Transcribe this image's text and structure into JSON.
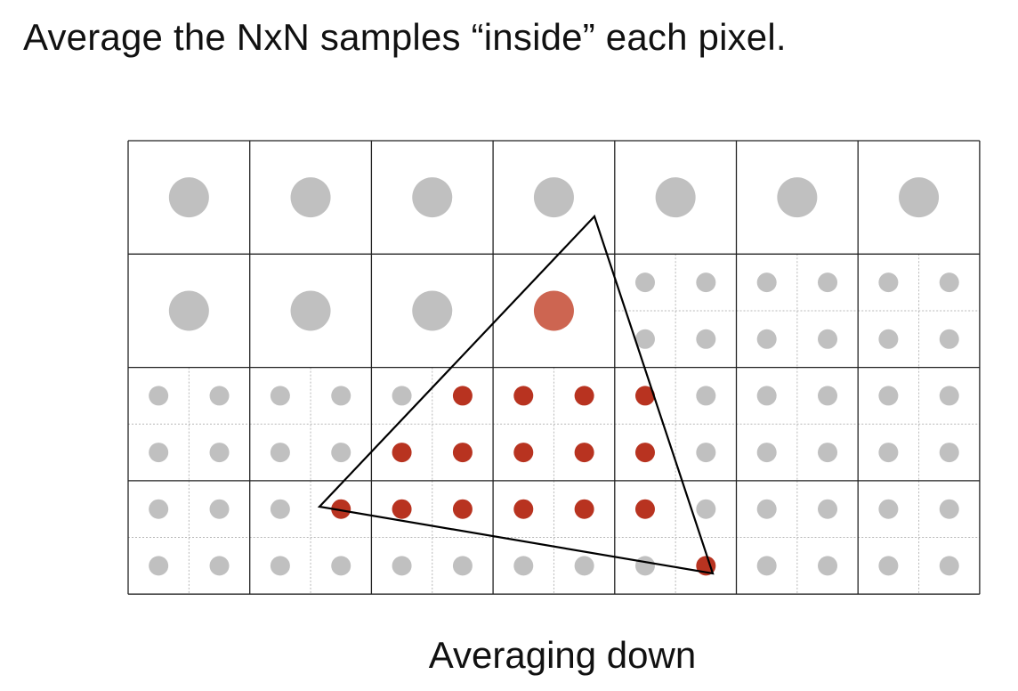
{
  "slide": {
    "title": "Average the NxN samples “inside” each pixel.",
    "caption": "Averaging down"
  },
  "grid": {
    "columns": 7,
    "rows": 4,
    "samples_per_pixel_side": 2
  },
  "pixels": [
    {
      "row": 0,
      "col": 0,
      "mode": "averaged",
      "coverage": 0
    },
    {
      "row": 0,
      "col": 1,
      "mode": "averaged",
      "coverage": 0
    },
    {
      "row": 0,
      "col": 2,
      "mode": "averaged",
      "coverage": 0
    },
    {
      "row": 0,
      "col": 3,
      "mode": "averaged",
      "coverage": 0
    },
    {
      "row": 0,
      "col": 4,
      "mode": "averaged",
      "coverage": 0
    },
    {
      "row": 0,
      "col": 5,
      "mode": "averaged",
      "coverage": 0
    },
    {
      "row": 0,
      "col": 6,
      "mode": "averaged",
      "coverage": 0
    },
    {
      "row": 1,
      "col": 0,
      "mode": "averaged",
      "coverage": 0
    },
    {
      "row": 1,
      "col": 1,
      "mode": "averaged",
      "coverage": 0
    },
    {
      "row": 1,
      "col": 2,
      "mode": "averaged",
      "coverage": 0
    },
    {
      "row": 1,
      "col": 3,
      "mode": "averaged",
      "coverage": 0.75
    },
    {
      "row": 1,
      "col": 4,
      "mode": "samples",
      "samples": [
        0,
        0,
        0,
        0
      ]
    },
    {
      "row": 1,
      "col": 5,
      "mode": "samples",
      "samples": [
        0,
        0,
        0,
        0
      ]
    },
    {
      "row": 1,
      "col": 6,
      "mode": "samples",
      "samples": [
        0,
        0,
        0,
        0
      ]
    },
    {
      "row": 2,
      "col": 0,
      "mode": "samples",
      "samples": [
        0,
        0,
        0,
        0
      ]
    },
    {
      "row": 2,
      "col": 1,
      "mode": "samples",
      "samples": [
        0,
        0,
        0,
        0
      ]
    },
    {
      "row": 2,
      "col": 2,
      "mode": "samples",
      "samples": [
        0,
        1,
        1,
        1
      ]
    },
    {
      "row": 2,
      "col": 3,
      "mode": "samples",
      "samples": [
        1,
        1,
        1,
        1
      ]
    },
    {
      "row": 2,
      "col": 4,
      "mode": "samples",
      "samples": [
        1,
        0,
        1,
        0
      ]
    },
    {
      "row": 2,
      "col": 5,
      "mode": "samples",
      "samples": [
        0,
        0,
        0,
        0
      ]
    },
    {
      "row": 2,
      "col": 6,
      "mode": "samples",
      "samples": [
        0,
        0,
        0,
        0
      ]
    },
    {
      "row": 3,
      "col": 0,
      "mode": "samples",
      "samples": [
        0,
        0,
        0,
        0
      ]
    },
    {
      "row": 3,
      "col": 1,
      "mode": "samples",
      "samples": [
        0,
        1,
        0,
        0
      ]
    },
    {
      "row": 3,
      "col": 2,
      "mode": "samples",
      "samples": [
        1,
        1,
        0,
        0
      ]
    },
    {
      "row": 3,
      "col": 3,
      "mode": "samples",
      "samples": [
        1,
        1,
        0,
        0
      ]
    },
    {
      "row": 3,
      "col": 4,
      "mode": "samples",
      "samples": [
        1,
        0,
        0,
        1
      ]
    },
    {
      "row": 3,
      "col": 5,
      "mode": "samples",
      "samples": [
        0,
        0,
        0,
        0
      ]
    },
    {
      "row": 3,
      "col": 6,
      "mode": "samples",
      "samples": [
        0,
        0,
        0,
        0
      ]
    }
  ],
  "colors": {
    "uncovered": "#c0c0c0",
    "covered": "#b83320",
    "averaged_partial": "#cd6551",
    "grid_line": "#222222",
    "subgrid_line": "#b8b8b8",
    "triangle": "#000000"
  }
}
